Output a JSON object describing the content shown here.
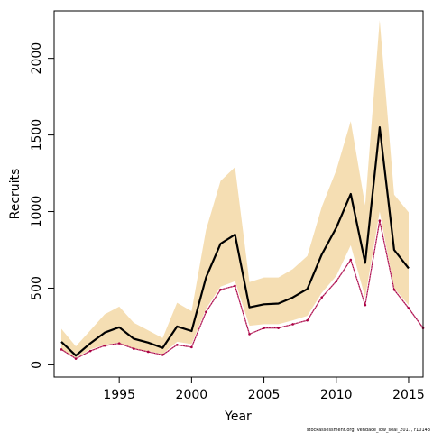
{
  "chart_data": {
    "type": "line",
    "xlabel": "Year",
    "ylabel": "Recruits",
    "xlim": [
      1990.5,
      2016
    ],
    "ylim": [
      -80,
      2310
    ],
    "x_ticks": [
      1995,
      2000,
      2005,
      2010,
      2015
    ],
    "y_ticks": [
      0,
      500,
      1000,
      1500,
      2000
    ],
    "grid": false,
    "x": [
      1991,
      1992,
      1993,
      1994,
      1995,
      1996,
      1997,
      1998,
      1999,
      2000,
      2001,
      2002,
      2003,
      2004,
      2005,
      2006,
      2007,
      2008,
      2009,
      2010,
      2011,
      2012,
      2013,
      2014,
      2015,
      2016
    ],
    "series": [
      {
        "role": "estimate",
        "color": "#000000",
        "values": [
          150,
          60,
          140,
          210,
          245,
          170,
          145,
          110,
          250,
          220,
          570,
          790,
          850,
          375,
          395,
          400,
          440,
          495,
          720,
          895,
          1115,
          665,
          1550,
          750,
          630,
          null
        ]
      },
      {
        "role": "confidence interval",
        "color": "#f5deb3",
        "lower": [
          100,
          45,
          100,
          130,
          145,
          105,
          90,
          70,
          150,
          135,
          365,
          510,
          545,
          255,
          265,
          265,
          290,
          320,
          470,
          580,
          780,
          440,
          1000,
          500,
          390,
          null
        ],
        "upper": [
          235,
          120,
          225,
          330,
          380,
          275,
          225,
          175,
          405,
          350,
          880,
          1200,
          1290,
          540,
          570,
          570,
          625,
          710,
          1030,
          1270,
          1590,
          1040,
          2250,
          1110,
          995,
          null
        ]
      },
      {
        "role": "reference",
        "color": "#aa0044",
        "values": [
          100,
          40,
          90,
          125,
          140,
          105,
          85,
          65,
          130,
          115,
          345,
          490,
          515,
          200,
          240,
          240,
          265,
          290,
          440,
          545,
          685,
          390,
          940,
          490,
          370,
          240
        ]
      }
    ],
    "annotation": "stockassessment.org, vendace_low_seal_2017, r10143"
  }
}
